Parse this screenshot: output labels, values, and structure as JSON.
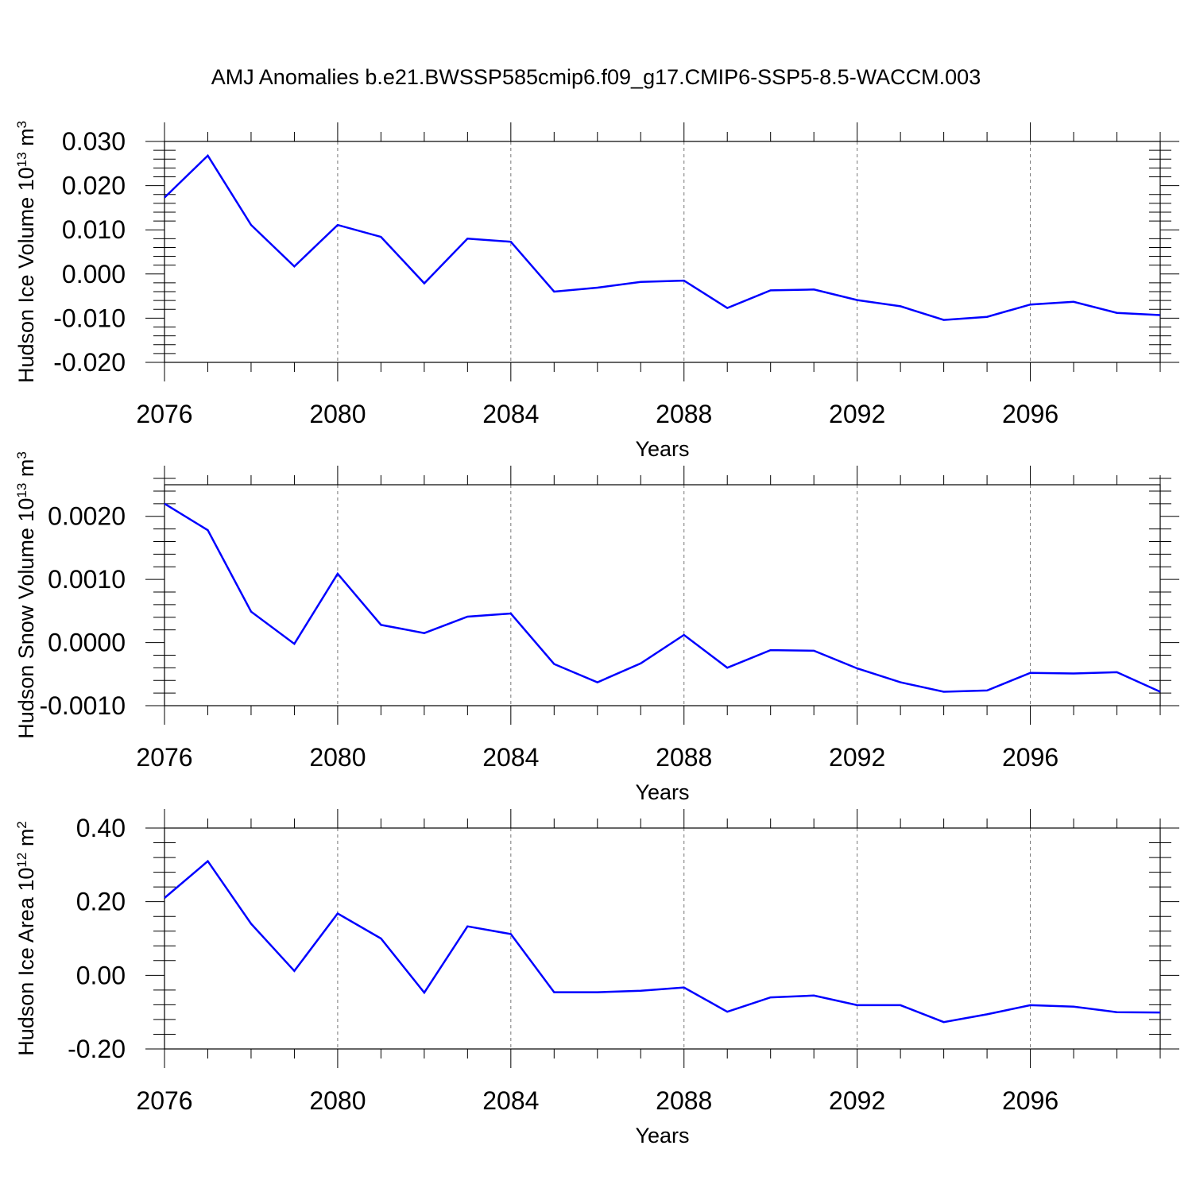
{
  "figure_title": "AMJ Anomalies b.e21.BWSSP585cmip6.f09_g17.CMIP6-SSP5-8.5-WACCM.003",
  "colors": {
    "line": "#0000ff",
    "axis": "#000000",
    "grid": "#777777"
  },
  "chart_data": [
    {
      "type": "line",
      "title": "AMJ Anomalies b.e21.BWSSP585cmip6.f09_g17.CMIP6-SSP5-8.5-WACCM.003",
      "xlabel": "Years",
      "ylabel_base": "Hudson Ice Volume 10",
      "ylabel_exp": "13",
      "ylabel_unit": " m",
      "ylabel_unit_exp": "3",
      "xlim": [
        2076,
        2099
      ],
      "ylim": [
        -0.02,
        0.03
      ],
      "xticks": [
        2076,
        2080,
        2084,
        2088,
        2092,
        2096
      ],
      "xtick_labels": [
        "2076",
        "2080",
        "2084",
        "2088",
        "2092",
        "2096"
      ],
      "yticks": [
        -0.02,
        -0.01,
        0.0,
        0.01,
        0.02,
        0.03
      ],
      "ytick_labels": [
        "-0.020",
        "-0.010",
        "0.000",
        "0.010",
        "0.020",
        "0.030"
      ],
      "grid_x": true,
      "x": [
        2076,
        2077,
        2078,
        2079,
        2080,
        2081,
        2082,
        2083,
        2084,
        2085,
        2086,
        2087,
        2088,
        2089,
        2090,
        2091,
        2092,
        2093,
        2094,
        2095,
        2096,
        2097,
        2098,
        2099
      ],
      "series": [
        {
          "name": "Hudson Ice Volume",
          "values": [
            0.0173,
            0.0268,
            0.0111,
            0.0017,
            0.0111,
            0.0084,
            -0.0021,
            0.008,
            0.0073,
            -0.004,
            -0.0031,
            -0.0018,
            -0.0015,
            -0.0077,
            -0.0037,
            -0.0035,
            -0.0059,
            -0.0073,
            -0.0104,
            -0.0097,
            -0.0069,
            -0.0063,
            -0.0088,
            -0.0093
          ]
        }
      ]
    },
    {
      "type": "line",
      "xlabel": "Years",
      "ylabel_base": "Hudson Snow Volume 10",
      "ylabel_exp": "13",
      "ylabel_unit": " m",
      "ylabel_unit_exp": "3",
      "xlim": [
        2076,
        2099
      ],
      "ylim": [
        -0.001,
        0.0025
      ],
      "xticks": [
        2076,
        2080,
        2084,
        2088,
        2092,
        2096
      ],
      "xtick_labels": [
        "2076",
        "2080",
        "2084",
        "2088",
        "2092",
        "2096"
      ],
      "yticks": [
        -0.001,
        0.0,
        0.001,
        0.002
      ],
      "ytick_labels": [
        "-0.0010",
        "0.0000",
        "0.0010",
        "0.0020"
      ],
      "grid_x": true,
      "x": [
        2076,
        2077,
        2078,
        2079,
        2080,
        2081,
        2082,
        2083,
        2084,
        2085,
        2086,
        2087,
        2088,
        2089,
        2090,
        2091,
        2092,
        2093,
        2094,
        2095,
        2096,
        2097,
        2098,
        2099
      ],
      "series": [
        {
          "name": "Hudson Snow Volume",
          "values": [
            0.0022,
            0.00178,
            0.00049,
            -2e-05,
            0.00109,
            0.00028,
            0.00015,
            0.00041,
            0.00046,
            -0.00034,
            -0.00063,
            -0.00033,
            0.00012,
            -0.0004,
            -0.00012,
            -0.00013,
            -0.00041,
            -0.00063,
            -0.00078,
            -0.00076,
            -0.00048,
            -0.00049,
            -0.00047,
            -0.00078
          ]
        }
      ]
    },
    {
      "type": "line",
      "xlabel": "Years",
      "ylabel_base": "Hudson Ice Area 10",
      "ylabel_exp": "12",
      "ylabel_unit": " m",
      "ylabel_unit_exp": "2",
      "xlim": [
        2076,
        2099
      ],
      "ylim": [
        -0.2,
        0.4
      ],
      "xticks": [
        2076,
        2080,
        2084,
        2088,
        2092,
        2096
      ],
      "xtick_labels": [
        "2076",
        "2080",
        "2084",
        "2088",
        "2092",
        "2096"
      ],
      "yticks": [
        -0.2,
        0.0,
        0.2,
        0.4
      ],
      "ytick_labels": [
        "-0.20",
        "0.00",
        "0.20",
        "0.40"
      ],
      "grid_x": true,
      "x": [
        2076,
        2077,
        2078,
        2079,
        2080,
        2081,
        2082,
        2083,
        2084,
        2085,
        2086,
        2087,
        2088,
        2089,
        2090,
        2091,
        2092,
        2093,
        2094,
        2095,
        2096,
        2097,
        2098,
        2099
      ],
      "series": [
        {
          "name": "Hudson Ice Area",
          "values": [
            0.21,
            0.31,
            0.14,
            0.012,
            0.168,
            0.1,
            -0.047,
            0.133,
            0.112,
            -0.046,
            -0.046,
            -0.042,
            -0.033,
            -0.099,
            -0.06,
            -0.055,
            -0.081,
            -0.081,
            -0.127,
            -0.106,
            -0.081,
            -0.085,
            -0.1,
            -0.101
          ]
        }
      ]
    }
  ]
}
